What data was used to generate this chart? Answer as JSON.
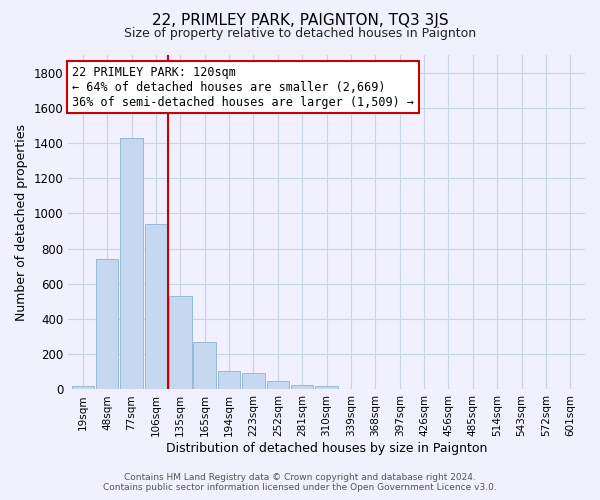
{
  "title": "22, PRIMLEY PARK, PAIGNTON, TQ3 3JS",
  "subtitle": "Size of property relative to detached houses in Paignton",
  "xlabel": "Distribution of detached houses by size in Paignton",
  "ylabel": "Number of detached properties",
  "bar_labels": [
    "19sqm",
    "48sqm",
    "77sqm",
    "106sqm",
    "135sqm",
    "165sqm",
    "194sqm",
    "223sqm",
    "252sqm",
    "281sqm",
    "310sqm",
    "339sqm",
    "368sqm",
    "397sqm",
    "426sqm",
    "456sqm",
    "485sqm",
    "514sqm",
    "543sqm",
    "572sqm",
    "601sqm"
  ],
  "bar_values": [
    20,
    740,
    1430,
    940,
    530,
    270,
    103,
    93,
    50,
    25,
    20,
    0,
    5,
    0,
    0,
    0,
    0,
    0,
    0,
    0,
    0
  ],
  "bar_color": "#c5d8f0",
  "bar_edge_color": "#9ab8d8",
  "annotation_line0": "22 PRIMLEY PARK: 120sqm",
  "annotation_line1": "← 64% of detached houses are smaller (2,669)",
  "annotation_line2": "36% of semi-detached houses are larger (1,509) →",
  "vline_color": "#cc0000",
  "ylim": [
    0,
    1900
  ],
  "yticks": [
    0,
    200,
    400,
    600,
    800,
    1000,
    1200,
    1400,
    1600,
    1800
  ],
  "footer_line1": "Contains HM Land Registry data © Crown copyright and database right 2024.",
  "footer_line2": "Contains public sector information licensed under the Open Government Licence v3.0.",
  "bg_color": "#f0f0ff",
  "grid_color": "#c8d4e8"
}
